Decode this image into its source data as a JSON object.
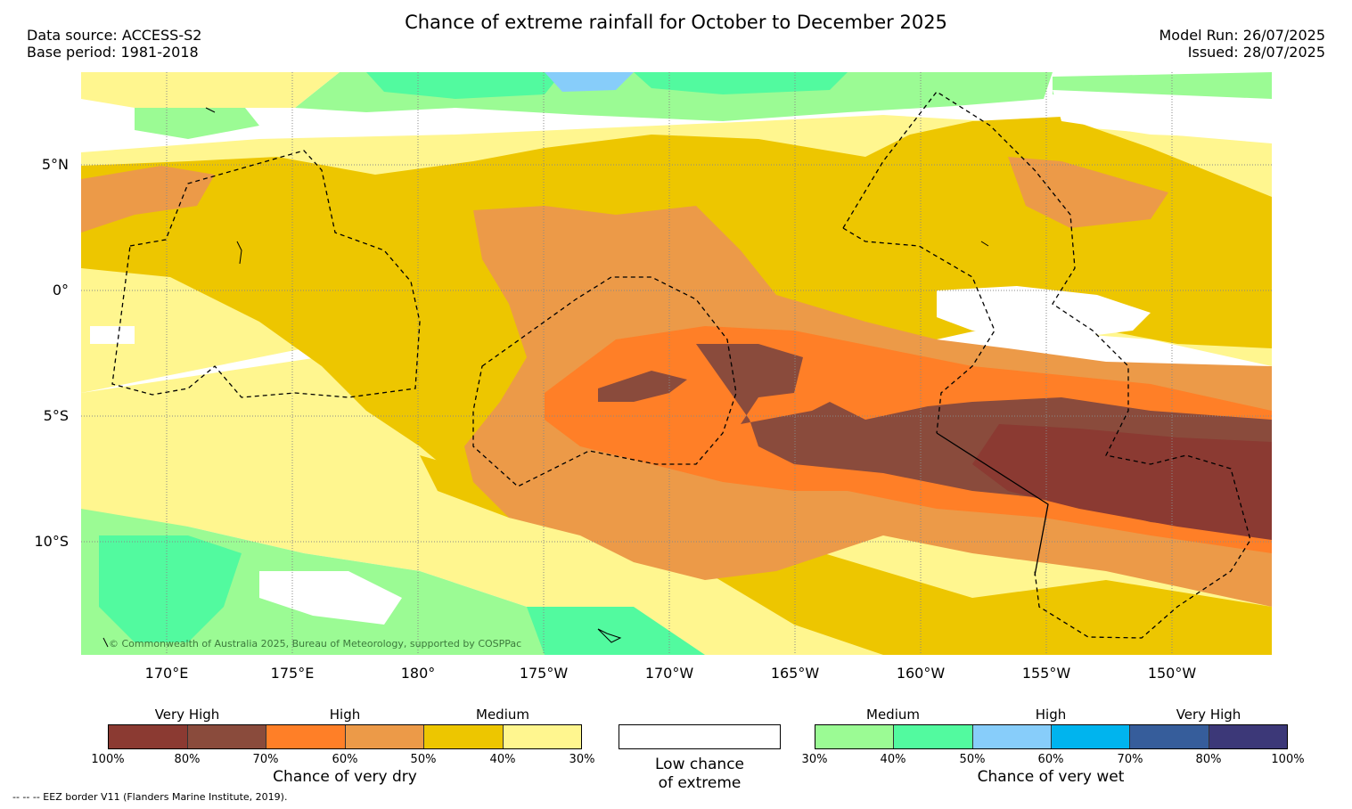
{
  "header": {
    "title": "Chance of extreme rainfall for October to December 2025",
    "data_source": "Data source: ACCESS-S2",
    "base_period": "Base period: 1981-2018",
    "model_run": "Model Run: 26/07/2025",
    "issued": "Issued: 28/07/2025"
  },
  "map": {
    "lat_labels": [
      "5°N",
      "0°",
      "5°S",
      "10°S"
    ],
    "lon_labels": [
      "170°E",
      "175°E",
      "180°",
      "175°W",
      "170°W",
      "165°W",
      "160°W",
      "155°W",
      "150°W"
    ],
    "copyright": "© Commonwealth of Australia 2025, Bureau of Meteorology, supported by COSPPac"
  },
  "colors": {
    "dry_100_80": "#8b3a32",
    "dry_80_70": "#8a4b3c",
    "dry_70_60": "#ff7f27",
    "dry_60_50": "#ec9a48",
    "dry_50_40": "#edc600",
    "dry_40_30": "#fff68f",
    "wet_30_40": "#9bfb94",
    "wet_40_50": "#52fa9f",
    "wet_50_60": "#87cdfa",
    "wet_60_70": "#00b4ee",
    "wet_70_80": "#365d9b",
    "wet_80_100": "#3c3878",
    "grid": "#888888"
  },
  "legend": {
    "dry": {
      "categories": [
        "Very High",
        "High",
        "Medium"
      ],
      "ticks": [
        "100%",
        "80%",
        "70%",
        "60%",
        "50%",
        "40%",
        "30%"
      ],
      "caption": "Chance of very dry"
    },
    "low": {
      "caption_line1": "Low chance",
      "caption_line2": "of extreme"
    },
    "wet": {
      "categories": [
        "Medium",
        "High",
        "Very High"
      ],
      "ticks": [
        "30%",
        "40%",
        "50%",
        "60%",
        "70%",
        "80%",
        "100%"
      ],
      "caption": "Chance of very wet"
    }
  },
  "footer": {
    "eez_note": "--  --  -- EEZ border V11 (Flanders Marine Institute, 2019)."
  }
}
